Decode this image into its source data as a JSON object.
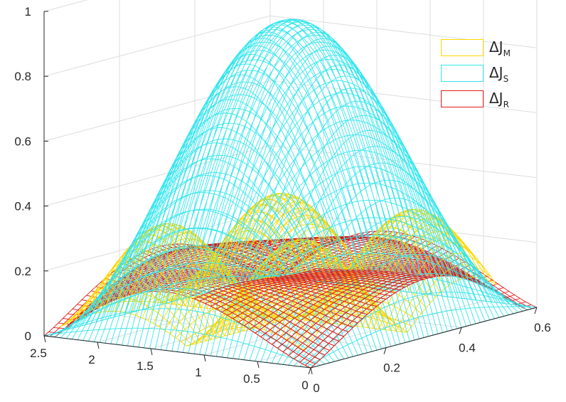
{
  "chart_data": {
    "type": "surface",
    "title": "",
    "xlabel": "",
    "ylabel": "",
    "zlabel": "",
    "axes": {
      "left_axis": {
        "range": [
          0,
          2.5
        ],
        "ticks": [
          "2.5",
          "2",
          "1.5",
          "1",
          "0.5",
          "0"
        ]
      },
      "right_axis": {
        "range": [
          0,
          0.6
        ],
        "ticks": [
          "0",
          "0.2",
          "0.4",
          "0.6"
        ]
      },
      "z_axis": {
        "range": [
          0,
          1
        ],
        "ticks": [
          "0",
          "0.2",
          "0.4",
          "0.6",
          "0.8",
          "1"
        ]
      }
    },
    "grid": true,
    "legend_position": "top-right",
    "series": [
      {
        "symbol": "ΔJ",
        "subscript": "M",
        "color": "#ffd700",
        "peak": 0.33,
        "description": "yellow mesh, two ridges"
      },
      {
        "symbol": "ΔJ",
        "subscript": "S",
        "color": "#33e6ee",
        "peak": 0.93,
        "description": "cyan mesh, single dome"
      },
      {
        "symbol": "ΔJ",
        "subscript": "R",
        "color": "#e01818",
        "peak": 0.3,
        "description": "red mesh, edge lobes"
      }
    ]
  }
}
